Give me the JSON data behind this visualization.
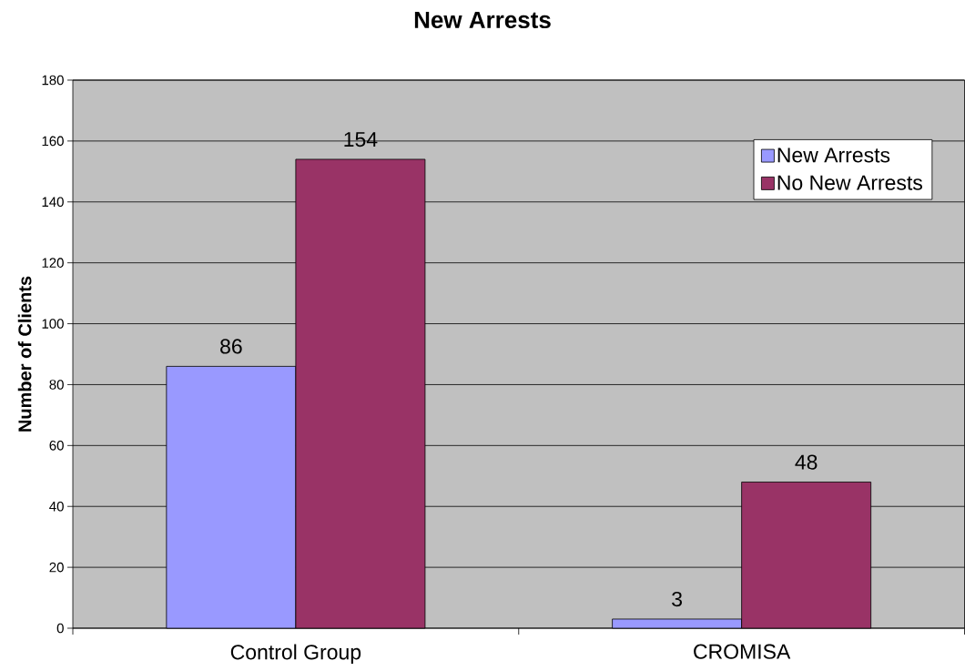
{
  "chart_data": {
    "type": "bar",
    "title": "New Arrests",
    "ylabel": "Number of Clients",
    "categories": [
      "Control Group",
      "CROMISA"
    ],
    "series": [
      {
        "name": "New Arrests",
        "color": "#9999ff",
        "values": [
          86,
          3
        ]
      },
      {
        "name": "No New Arrests",
        "color": "#993366",
        "values": [
          154,
          48
        ]
      }
    ],
    "ylim": [
      0,
      180
    ],
    "yticks": [
      0,
      20,
      40,
      60,
      80,
      100,
      120,
      140,
      160,
      180
    ],
    "grid": "y",
    "legend": "top right",
    "data_labels": true
  }
}
